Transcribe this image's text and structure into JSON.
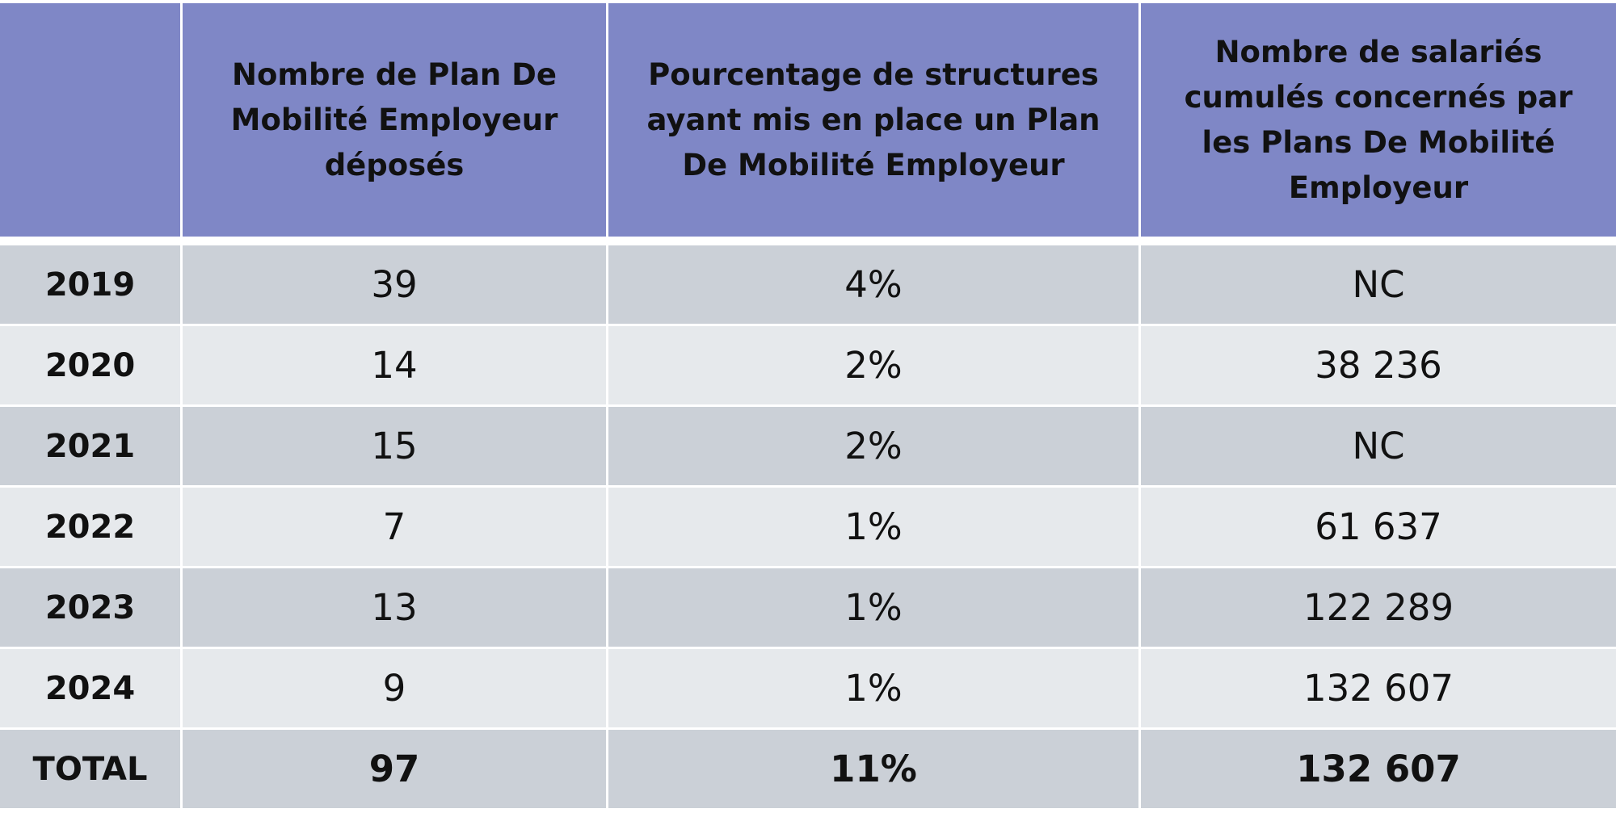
{
  "table": {
    "header": [
      "Nombre de Plan De Mobilité Employeur déposés",
      "Pourcentage de structures ayant mis en place un Plan De Mobilité Employeur",
      "Nombre de salariés cumulés concernés par les Plans De Mobilité Employeur"
    ],
    "rows": [
      [
        "2019",
        "39",
        "4%",
        "NC"
      ],
      [
        "2020",
        "14",
        "2%",
        "38 236"
      ],
      [
        "2021",
        "15",
        "2%",
        "NC"
      ],
      [
        "2022",
        "7",
        "1%",
        "61 637"
      ],
      [
        "2023",
        "13",
        "1%",
        "122 289"
      ],
      [
        "2024",
        "9",
        "1%",
        "132 607"
      ],
      [
        "TOTAL",
        "97",
        "11%",
        "132 607"
      ]
    ]
  }
}
